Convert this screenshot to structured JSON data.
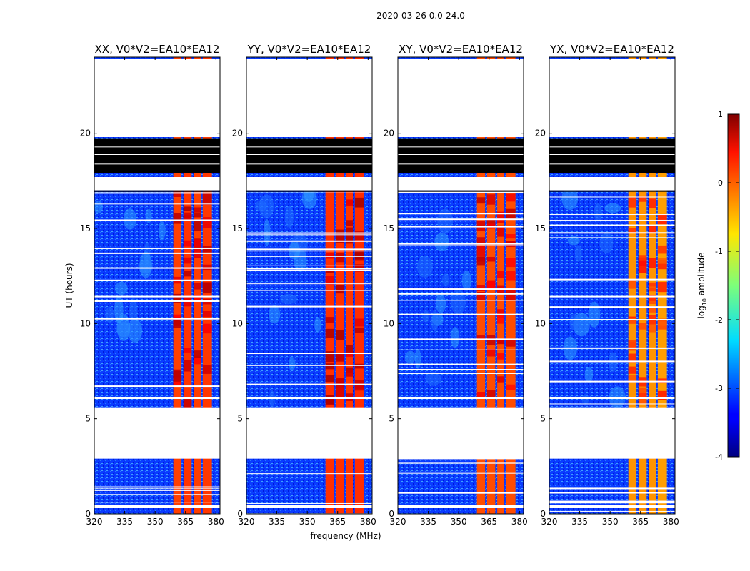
{
  "figure": {
    "suptitle": "2020-03-26 0.0-24.0"
  },
  "chart_data": {
    "type": "heatmap",
    "x_range": [
      320,
      382
    ],
    "y_range": [
      0,
      24
    ],
    "xticks": [
      320,
      335,
      350,
      365,
      380
    ],
    "yticks": [
      0,
      5,
      10,
      15,
      20
    ],
    "xlabel": "frequency (MHz)",
    "ylabel": "UT (hours)",
    "colorscale": "jet",
    "panels": [
      {
        "title": "XX, V0*V2=EA10*EA12"
      },
      {
        "title": "YY, V0*V2=EA10*EA12"
      },
      {
        "title": "XY, V0*V2=EA10*EA12"
      },
      {
        "title": "YX, V0*V2=EA10*EA12"
      }
    ],
    "panel_band_levels": [
      [
        0.06,
        0.12,
        0.07,
        0.1
      ],
      [
        0.14,
        0.14,
        0.12,
        0.16
      ],
      [
        0.0,
        0.0,
        0.0,
        0.0
      ],
      [
        -0.35,
        -0.35,
        -0.35,
        -0.4
      ]
    ],
    "bands_mhz": [
      [
        359,
        363
      ],
      [
        364,
        368
      ],
      [
        369,
        372.5
      ],
      [
        373.5,
        378
      ]
    ],
    "blank_ut": [
      [
        2.9,
        5.6
      ],
      [
        17.0,
        17.7
      ],
      [
        19.8,
        23.9
      ]
    ],
    "flagged_ut": [
      [
        17.9,
        19.7
      ]
    ],
    "colorbar": {
      "label": "log",
      "label_sub": "10",
      "label_suffix": " amplitude",
      "range": [
        -4,
        1
      ],
      "ticks": [
        -4,
        -3,
        -2,
        -1,
        0,
        1
      ]
    }
  }
}
